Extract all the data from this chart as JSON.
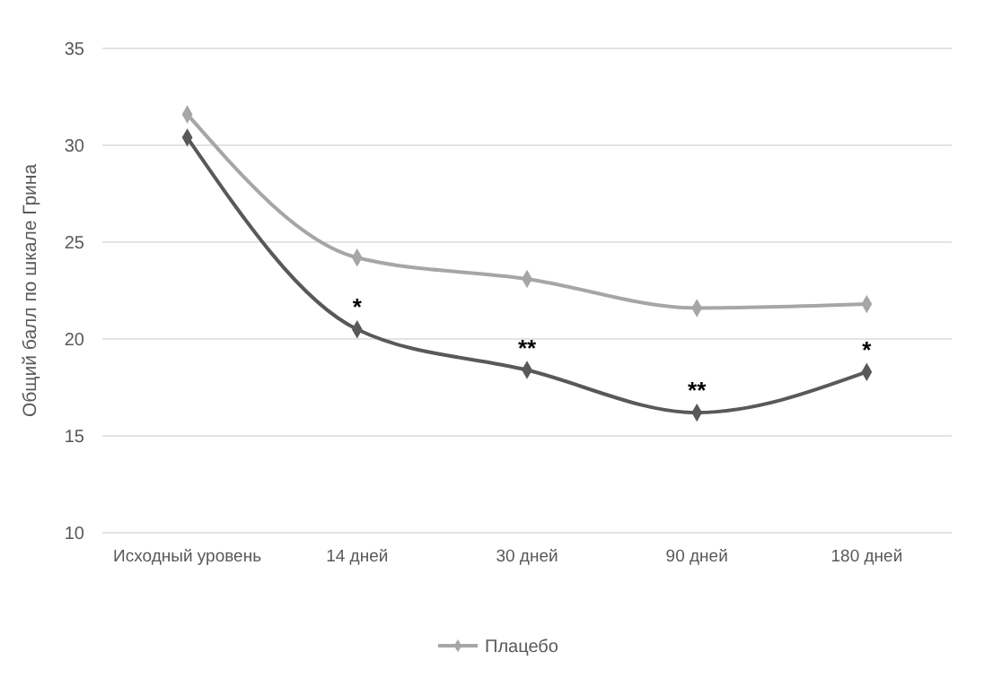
{
  "chart_data": {
    "type": "line",
    "ylabel": "Общий балл по шкале Грина",
    "categories": [
      "Исходный уровень",
      "14 дней",
      "30 дней",
      "90 дней",
      "180 дней"
    ],
    "series": [
      {
        "color": "#595959",
        "values": [
          30.4,
          20.5,
          18.4,
          16.2,
          18.3
        ]
      },
      {
        "name": "Плацебо",
        "color": "#a6a6a6",
        "values": [
          31.6,
          24.2,
          23.1,
          21.6,
          21.8
        ]
      }
    ],
    "annotations": [
      {
        "text": "*",
        "x": "14 дней",
        "y": 20.5
      },
      {
        "text": "**",
        "x": "30 дней",
        "y": 18.4
      },
      {
        "text": "**",
        "x": "90 дней",
        "y": 16.2
      },
      {
        "text": "*",
        "x": "180 дней",
        "y": 18.3
      }
    ],
    "ylim": [
      10,
      35
    ],
    "yticks": [
      10,
      15,
      20,
      25,
      30,
      35
    ],
    "grid": "y",
    "legend": "bottom",
    "marker": "diamond",
    "line_style": "solid"
  }
}
